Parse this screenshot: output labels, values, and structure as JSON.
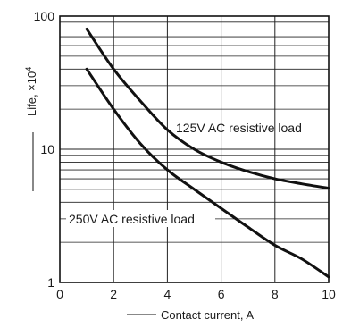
{
  "chart_data": {
    "type": "line",
    "xlabel": "Contact current, A",
    "ylabel": "Life, ×10",
    "ylabel_superscript": "4",
    "x_scale": "linear",
    "y_scale": "log",
    "xlim": [
      0,
      10
    ],
    "ylim": [
      1,
      100
    ],
    "x_ticks": [
      0,
      2,
      4,
      6,
      8,
      10
    ],
    "x_tick_labels": [
      "0",
      "2",
      "4",
      "6",
      "8",
      "10"
    ],
    "y_tick_labels": [
      "1",
      "10",
      "100"
    ],
    "y_tick_values": [
      1,
      10,
      100
    ],
    "grid": true,
    "series": [
      {
        "name": "125V AC resistive load",
        "x": [
          1,
          2,
          3,
          4,
          5,
          6,
          7,
          8,
          9,
          10
        ],
        "y": [
          80,
          40,
          23,
          14,
          10,
          8,
          6.8,
          6,
          5.5,
          5.1
        ]
      },
      {
        "name": "250V AC resistive load",
        "x": [
          1,
          2,
          3,
          4,
          5,
          6,
          7,
          8,
          9,
          10
        ],
        "y": [
          40,
          20,
          11,
          7,
          5,
          3.6,
          2.6,
          1.9,
          1.5,
          1.1
        ]
      }
    ]
  }
}
